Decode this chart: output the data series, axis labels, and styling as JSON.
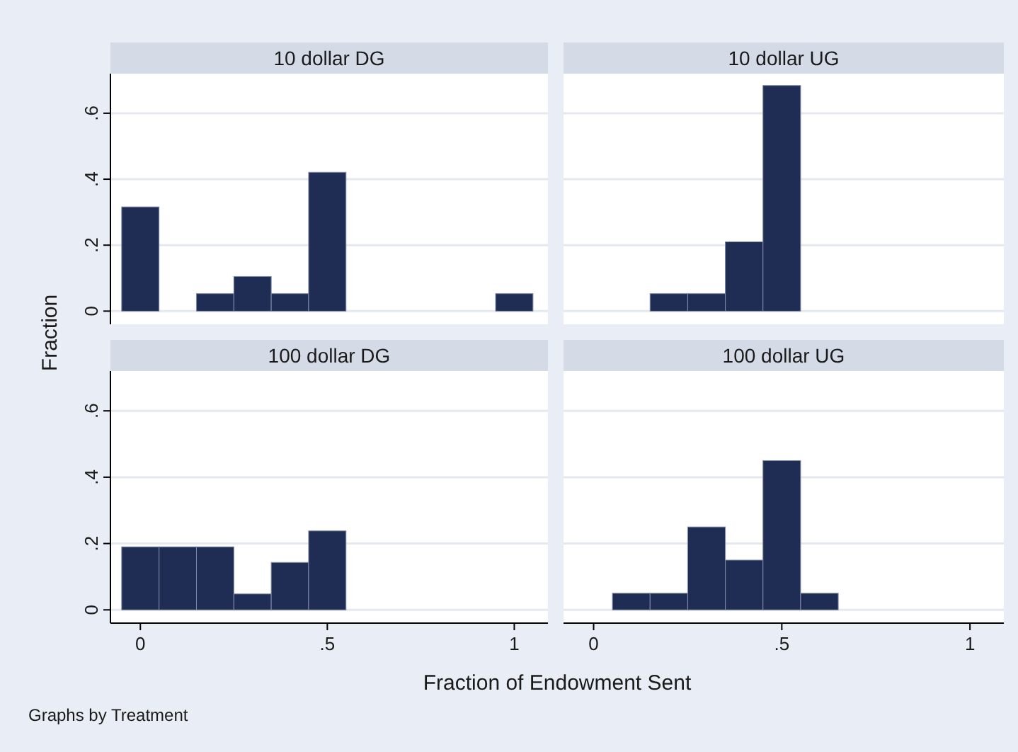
{
  "chart_data": [
    {
      "type": "histogram",
      "title": "10 dollar DG",
      "ylabel": "Fraction",
      "bins": [
        -0.05,
        0.05,
        0.15,
        0.25,
        0.35,
        0.45,
        0.55,
        0.65,
        0.75,
        0.85,
        0.95,
        1.05
      ],
      "values": [
        0.316,
        0,
        0.053,
        0.105,
        0.053,
        0.421,
        0,
        0,
        0,
        0,
        0.053
      ],
      "color": "#1f2d54",
      "xlim": [
        -0.08,
        1.09
      ],
      "ylim": [
        -0.04,
        0.72
      ],
      "yticks": [
        0,
        {
          "value": 0.2,
          "label": ".2"
        },
        {
          "value": 0.4,
          "label": ".4"
        },
        {
          "value": 0.6,
          "label": ".6"
        }
      ],
      "grid": "y",
      "tick_labels": "y"
    },
    {
      "type": "histogram",
      "title": "10 dollar UG",
      "bins": [
        -0.05,
        0.05,
        0.15,
        0.25,
        0.35,
        0.45,
        0.55,
        0.65,
        0.75,
        0.85,
        0.95,
        1.05
      ],
      "values": [
        0,
        0,
        0.053,
        0.053,
        0.21,
        0.684,
        0,
        0,
        0,
        0,
        0
      ],
      "color": "#1f2d54",
      "xlim": [
        -0.08,
        1.09
      ],
      "ylim": [
        -0.04,
        0.72
      ],
      "yticks": [
        0,
        0.2,
        0.4,
        0.6
      ],
      "grid": "y",
      "tick_labels": false
    },
    {
      "type": "histogram",
      "title": "100 dollar DG",
      "xlabel": "Fraction of Endowment Sent",
      "annotations": [
        "Graphs by Treatment"
      ],
      "bins": [
        -0.05,
        0.05,
        0.15,
        0.25,
        0.35,
        0.45,
        0.55,
        0.65,
        0.75,
        0.85,
        0.95,
        1.05
      ],
      "values": [
        0.19,
        0.19,
        0.19,
        0.048,
        0.143,
        0.238,
        0,
        0,
        0,
        0,
        0
      ],
      "color": "#1f2d54",
      "xlim": [
        -0.08,
        1.09
      ],
      "ylim": [
        -0.04,
        0.72
      ],
      "xticks": [
        {
          "value": 0,
          "label": "0"
        },
        {
          "value": 0.5,
          "label": ".5"
        },
        {
          "value": 1,
          "label": "1"
        }
      ],
      "yticks": [
        0,
        {
          "value": 0.2,
          "label": ".2"
        },
        {
          "value": 0.4,
          "label": ".4"
        },
        {
          "value": 0.6,
          "label": ".6"
        }
      ],
      "grid": "y"
    },
    {
      "type": "histogram",
      "title": "100 dollar UG",
      "bins": [
        -0.05,
        0.05,
        0.15,
        0.25,
        0.35,
        0.45,
        0.55,
        0.65,
        0.75,
        0.85,
        0.95,
        1.05
      ],
      "values": [
        0,
        0.05,
        0.05,
        0.25,
        0.15,
        0.45,
        0.05,
        0,
        0,
        0,
        0
      ],
      "color": "#1f2d54",
      "xlim": [
        -0.08,
        1.09
      ],
      "ylim": [
        -0.04,
        0.72
      ],
      "xticks": [
        {
          "value": 0,
          "label": "0"
        },
        {
          "value": 0.5,
          "label": ".5"
        },
        {
          "value": 1,
          "label": "1"
        }
      ],
      "yticks": [
        0,
        0.2,
        0.4,
        0.6
      ],
      "grid": "y",
      "tick_labels": "x"
    }
  ]
}
